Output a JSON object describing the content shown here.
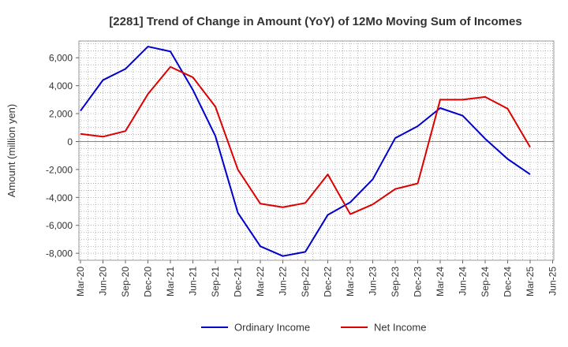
{
  "chart_data": {
    "type": "line",
    "title": "[2281]  Trend of Change in Amount (YoY) of 12Mo Moving Sum of Incomes",
    "xlabel": "",
    "ylabel": "Amount (million yen)",
    "ylim": [
      -8500,
      7200
    ],
    "yticks": [
      6000,
      4000,
      2000,
      0,
      -2000,
      -4000,
      -6000,
      -8000
    ],
    "ytick_labels": [
      "6,000",
      "4,000",
      "2,000",
      "0",
      "-2,000",
      "-4,000",
      "-6,000",
      "-8,000"
    ],
    "x": [
      "Mar-20",
      "Jun-20",
      "Sep-20",
      "Dec-20",
      "Mar-21",
      "Jun-21",
      "Sep-21",
      "Dec-21",
      "Mar-22",
      "Jun-22",
      "Sep-22",
      "Dec-22",
      "Mar-23",
      "Jun-23",
      "Sep-23",
      "Dec-23",
      "Mar-24",
      "Jun-24",
      "Sep-24",
      "Dec-24",
      "Mar-25",
      "Jun-25"
    ],
    "grid": true,
    "legend_position": "bottom",
    "series": [
      {
        "name": "Ordinary Income",
        "color": "#0000cc",
        "values": [
          2200,
          4400,
          5200,
          6800,
          6450,
          3700,
          400,
          -5100,
          -7500,
          -8200,
          -7900,
          -5250,
          -4350,
          -2700,
          250,
          1100,
          2400,
          1850,
          200,
          -1250,
          -2350,
          null
        ]
      },
      {
        "name": "Net Income",
        "color": "#dd0000",
        "values": [
          550,
          350,
          750,
          3400,
          5350,
          4600,
          2500,
          -2000,
          -4450,
          -4700,
          -4400,
          -2350,
          -5200,
          -4500,
          -3400,
          -3000,
          3000,
          3000,
          3200,
          2350,
          -400,
          null
        ]
      }
    ]
  }
}
